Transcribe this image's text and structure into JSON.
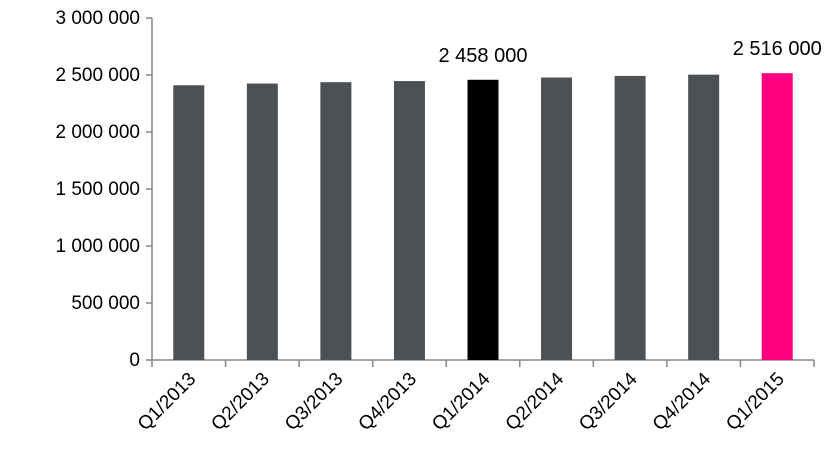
{
  "chart_data": {
    "type": "bar",
    "title": "",
    "xlabel": "",
    "ylabel": "",
    "categories": [
      "Q1/2013",
      "Q2/2013",
      "Q3/2013",
      "Q4/2013",
      "Q1/2014",
      "Q2/2014",
      "Q3/2014",
      "Q4/2014",
      "Q1/2015"
    ],
    "values": [
      2410000,
      2425000,
      2437000,
      2447000,
      2458000,
      2478000,
      2492000,
      2503000,
      2516000
    ],
    "ylim": [
      0,
      3000000
    ],
    "yticks": [
      0,
      500000,
      1000000,
      1500000,
      2000000,
      2500000,
      3000000
    ],
    "ytick_labels": [
      "0",
      "500 000",
      "1 000 000",
      "1 500 000",
      "2 000 000",
      "2 500 000",
      "3 000 000"
    ],
    "data_labels": [
      {
        "index": 4,
        "text": "2 458 000"
      },
      {
        "index": 8,
        "text": "2 516 000"
      }
    ],
    "grid": false,
    "legend": "none",
    "colors": {
      "default_bar": "#4d5154",
      "highlight_bar": "#000000",
      "latest_bar": "#ff0080",
      "axis": "#868686"
    },
    "bar_colors": [
      "#4d5154",
      "#4d5154",
      "#4d5154",
      "#4d5154",
      "#000000",
      "#4d5154",
      "#4d5154",
      "#4d5154",
      "#ff0080"
    ]
  }
}
